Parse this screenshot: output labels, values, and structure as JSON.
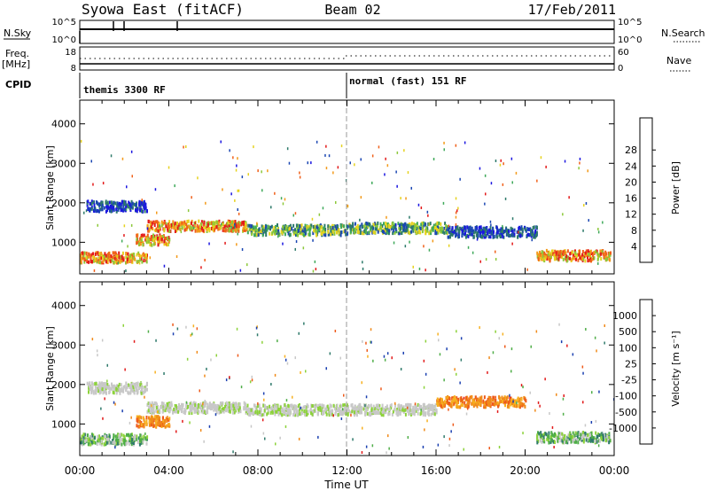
{
  "header": {
    "title": "Syowa East (fitACF)",
    "beam": "Beam 02",
    "date": "17/Feb/2011"
  },
  "top_panels": {
    "nsky": {
      "left_label": "N.Sky",
      "left_ticks": [
        "10^5",
        "10^0"
      ],
      "right_label": "N.Search",
      "right_ticks": [
        "10^5",
        "10^0"
      ]
    },
    "freq": {
      "left_label_1": "Freq.",
      "left_label_2": "[MHz]",
      "left_ticks": [
        "18",
        "8"
      ],
      "right_label": "Nave",
      "right_ticks": [
        "60",
        "0"
      ]
    },
    "cpid": {
      "label": "CPID",
      "segments": [
        {
          "label": "themis 3300 RF",
          "start_hour": 0
        },
        {
          "label": "normal (fast) 151 RF",
          "start_hour": 12
        }
      ]
    }
  },
  "chart_data": [
    {
      "type": "heatmap",
      "panel": "power",
      "ylabel": "Slant Range [km]",
      "yticks": [
        "1000",
        "2000",
        "3000",
        "4000"
      ],
      "ylim": [
        200,
        4600
      ],
      "xlim_hours": [
        0,
        24
      ],
      "colorbar": {
        "label": "Power [dB]",
        "ticks": [
          "4",
          "8",
          "12",
          "16",
          "20",
          "24",
          "28"
        ],
        "colors": [
          "#1b16e0",
          "#1a46b2",
          "#2d7a6a",
          "#3fa95a",
          "#8cc83a",
          "#e6d21e",
          "#f39a1a",
          "#f0601a",
          "#e31a1a"
        ]
      },
      "bands": [
        {
          "hour_start": 0.3,
          "hour_end": 3.0,
          "range_km": 1950,
          "level": "low"
        },
        {
          "hour_start": 2.5,
          "hour_end": 4.0,
          "range_km": 1100,
          "level": "high"
        },
        {
          "hour_start": 3.0,
          "hour_end": 7.5,
          "range_km": 1450,
          "level": "high"
        },
        {
          "hour_start": 7.5,
          "hour_end": 12.0,
          "range_km": 1350,
          "level": "medium"
        },
        {
          "hour_start": 12.0,
          "hour_end": 16.5,
          "range_km": 1400,
          "level": "medium"
        },
        {
          "hour_start": 16.5,
          "hour_end": 20.5,
          "range_km": 1300,
          "level": "low"
        },
        {
          "hour_start": 0.0,
          "hour_end": 3.0,
          "range_km": 650,
          "level": "high"
        },
        {
          "hour_start": 20.5,
          "hour_end": 23.8,
          "range_km": 700,
          "level": "high"
        }
      ]
    },
    {
      "type": "heatmap",
      "panel": "velocity",
      "ylabel": "Slant Range [km]",
      "yticks": [
        "1000",
        "2000",
        "3000",
        "4000"
      ],
      "ylim": [
        200,
        4600
      ],
      "xlim_hours": [
        0,
        24
      ],
      "colorbar": {
        "label": "Velocity [m s⁻¹]",
        "ticks": [
          "1000",
          "500",
          "100",
          "25",
          "-25",
          "-100",
          "-500",
          "-1000"
        ],
        "colors": [
          "#1a3fb0",
          "#2f7a6b",
          "#4fae48",
          "#8cd23a",
          "#c8c8c8",
          "#f7b020",
          "#f08a1a",
          "#ee5a1a",
          "#e21a1a"
        ]
      },
      "bands": [
        {
          "hour_start": 0.3,
          "hour_end": 3.0,
          "range_km": 1950,
          "level": "ground"
        },
        {
          "hour_start": 2.5,
          "hour_end": 4.0,
          "range_km": 1100,
          "level": "away"
        },
        {
          "hour_start": 3.0,
          "hour_end": 7.5,
          "range_km": 1450,
          "level": "ground"
        },
        {
          "hour_start": 7.5,
          "hour_end": 16.0,
          "range_km": 1400,
          "level": "ground"
        },
        {
          "hour_start": 16.0,
          "hour_end": 20.0,
          "range_km": 1600,
          "level": "away"
        },
        {
          "hour_start": 0.0,
          "hour_end": 3.0,
          "range_km": 650,
          "level": "toward"
        },
        {
          "hour_start": 20.5,
          "hour_end": 23.8,
          "range_km": 700,
          "level": "toward"
        }
      ]
    }
  ],
  "x_axis": {
    "label": "Time UT",
    "ticks": [
      "00:00",
      "04:00",
      "08:00",
      "12:00",
      "16:00",
      "20:00",
      "00:00"
    ]
  }
}
